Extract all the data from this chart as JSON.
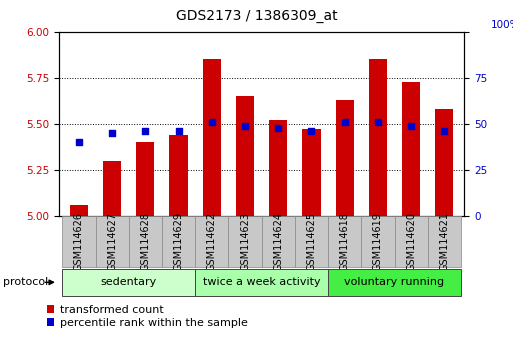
{
  "title": "GDS2173 / 1386309_at",
  "samples": [
    "GSM114626",
    "GSM114627",
    "GSM114628",
    "GSM114629",
    "GSM114622",
    "GSM114623",
    "GSM114624",
    "GSM114625",
    "GSM114618",
    "GSM114619",
    "GSM114620",
    "GSM114621"
  ],
  "transformed_count": [
    5.06,
    5.3,
    5.4,
    5.44,
    5.85,
    5.65,
    5.52,
    5.47,
    5.63,
    5.85,
    5.73,
    5.58
  ],
  "percentile_rank": [
    40,
    45,
    46,
    46,
    51,
    49,
    48,
    46,
    51,
    51,
    49,
    46
  ],
  "ylim_left": [
    5.0,
    6.0
  ],
  "ylim_right": [
    0,
    100
  ],
  "yticks_left": [
    5.0,
    5.25,
    5.5,
    5.75,
    6.0
  ],
  "yticks_right": [
    0,
    25,
    50,
    75,
    100
  ],
  "bar_color": "#cc0000",
  "dot_color": "#0000cc",
  "groups": [
    {
      "label": "sedentary",
      "start": 0,
      "end": 4,
      "color": "#ccffcc"
    },
    {
      "label": "twice a week activity",
      "start": 4,
      "end": 8,
      "color": "#aaffaa"
    },
    {
      "label": "voluntary running",
      "start": 8,
      "end": 12,
      "color": "#44ee44"
    }
  ],
  "legend_red": "transformed count",
  "legend_blue": "percentile rank within the sample",
  "protocol_label": "protocol",
  "title_fontsize": 10,
  "tick_fontsize": 7.5,
  "label_fontsize": 7,
  "group_fontsize": 8,
  "bar_width": 0.55
}
